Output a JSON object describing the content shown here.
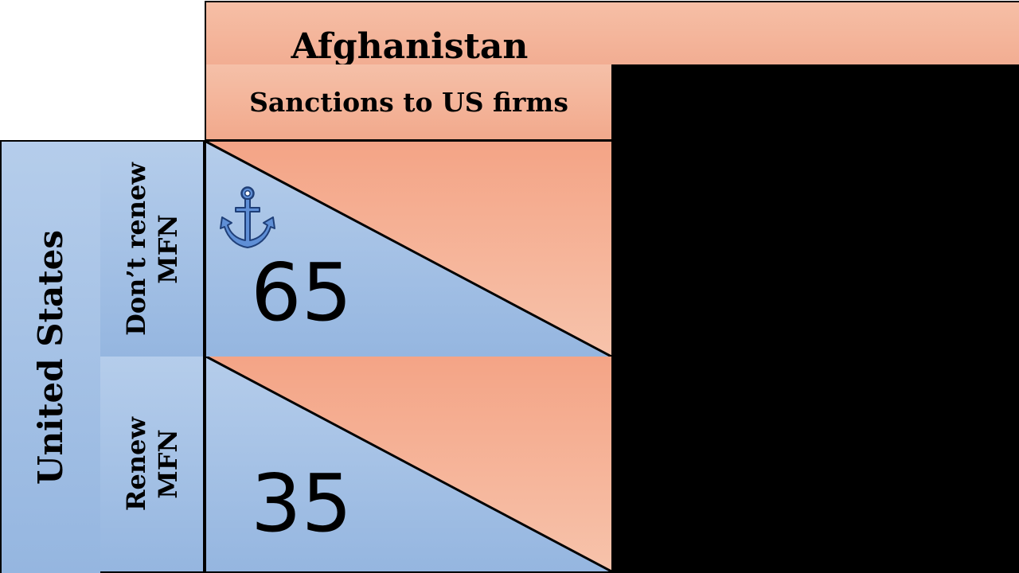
{
  "column_player": {
    "name": "Afghanistan",
    "strategies": [
      "Sanctions to US firms"
    ]
  },
  "row_player": {
    "name": "United States",
    "strategies": [
      {
        "line1": "Don’t renew",
        "line2": "MFN"
      },
      {
        "line1": "Renew",
        "line2": "MFN"
      }
    ]
  },
  "cells": [
    {
      "row_payoff": "65",
      "marker": "anchor-icon"
    },
    {
      "row_payoff": "35"
    }
  ],
  "colors": {
    "row_blue": "#9dbbe3",
    "column_orange": "#f4a98a",
    "border": "#000000",
    "anchor": "#3a6fc0"
  }
}
